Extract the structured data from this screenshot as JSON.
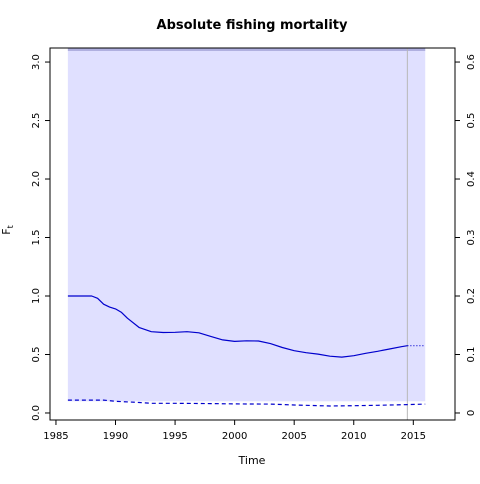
{
  "chart_data": {
    "type": "line",
    "title": "Absolute fishing mortality",
    "xlabel": "Time",
    "ylabel": "F",
    "ylabel_sub": "t",
    "xlim": [
      1984.5,
      2018.5
    ],
    "ylim": [
      -0.06,
      3.12
    ],
    "y2lim": [
      -0.012,
      0.624
    ],
    "x_ticks": [
      1985,
      1990,
      1995,
      2000,
      2005,
      2010,
      2015
    ],
    "x_tick_labels": [
      "1985",
      "1990",
      "1995",
      "2000",
      "2005",
      "2010",
      "2015"
    ],
    "y_ticks": [
      0.0,
      0.5,
      1.0,
      1.5,
      2.0,
      2.5,
      3.0
    ],
    "y_tick_labels": [
      "0.0",
      "0.5",
      "1.0",
      "1.5",
      "2.0",
      "2.5",
      "3.0"
    ],
    "y2_ticks": [
      0,
      0.1,
      0.2,
      0.3,
      0.4,
      0.5,
      0.6
    ],
    "y2_tick_labels": [
      "0",
      "0.1",
      "0.2",
      "0.3",
      "0.4",
      "0.5",
      "0.6"
    ],
    "band": {
      "x_range": [
        1986,
        2016
      ],
      "y_range": [
        0.1,
        3.12
      ],
      "color": "#e0e0ff"
    },
    "top_band_color": "#b0b0e0",
    "vline_x": 2014.5,
    "series": [
      {
        "style": "solid",
        "color": "#0000cd",
        "x": [
          1986,
          1987,
          1988,
          1988.5,
          1989,
          1989.5,
          1990,
          1990.5,
          1991,
          1992,
          1993,
          1994,
          1995,
          1996,
          1997,
          1998,
          1999,
          2000,
          2001,
          2002,
          2003,
          2004,
          2005,
          2006,
          2007,
          2008,
          2009,
          2010,
          2011,
          2012,
          2013,
          2014,
          2014.5
        ],
        "values": [
          1.0,
          1.0,
          1.0,
          0.98,
          0.93,
          0.905,
          0.89,
          0.86,
          0.81,
          0.73,
          0.695,
          0.688,
          0.69,
          0.695,
          0.685,
          0.655,
          0.625,
          0.612,
          0.617,
          0.615,
          0.593,
          0.56,
          0.532,
          0.515,
          0.503,
          0.485,
          0.478,
          0.49,
          0.51,
          0.527,
          0.547,
          0.567,
          0.575
        ]
      },
      {
        "style": "dotted",
        "color": "#0000cd",
        "x": [
          2014.5,
          2016
        ],
        "values": [
          0.575,
          0.575
        ]
      },
      {
        "style": "dashed",
        "color": "#0000cd",
        "x": [
          1986,
          1989,
          1990,
          1992,
          1993,
          1995,
          1998,
          2000,
          2003,
          2005,
          2008,
          2010,
          2012,
          2014.5,
          2016
        ],
        "values": [
          0.11,
          0.11,
          0.1,
          0.09,
          0.083,
          0.083,
          0.08,
          0.078,
          0.076,
          0.068,
          0.06,
          0.062,
          0.066,
          0.072,
          0.076
        ]
      }
    ]
  }
}
